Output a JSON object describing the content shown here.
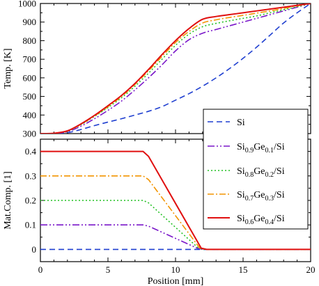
{
  "chart_data": [
    {
      "id": "top",
      "type": "line",
      "ylabel": "Temp. [K]",
      "xlim": [
        0,
        20
      ],
      "ylim": [
        300,
        1000
      ],
      "yticks": [
        300,
        400,
        500,
        600,
        700,
        800,
        900,
        1000
      ],
      "series": [
        {
          "key": "si",
          "color": "#1f3fd0",
          "dash": "8,5",
          "x": [
            0,
            1,
            2,
            3,
            4,
            5,
            6,
            7,
            8,
            9,
            10,
            11,
            12,
            13,
            14,
            15,
            16,
            17,
            18,
            19,
            20
          ],
          "y": [
            300,
            301,
            305,
            322,
            343,
            362,
            380,
            400,
            420,
            445,
            480,
            515,
            555,
            600,
            650,
            705,
            765,
            830,
            895,
            950,
            1000
          ]
        },
        {
          "key": "ge01",
          "color": "#7a17c9",
          "dash": "10,3,2,3,2,3",
          "x": [
            0,
            1,
            2,
            3,
            4,
            5,
            6,
            7,
            8,
            9,
            10,
            11,
            12,
            13,
            14,
            15,
            16,
            17,
            18,
            19,
            20
          ],
          "y": [
            300,
            301,
            310,
            340,
            380,
            425,
            475,
            535,
            600,
            670,
            745,
            805,
            840,
            860,
            880,
            900,
            920,
            940,
            960,
            980,
            1000
          ]
        },
        {
          "key": "ge02",
          "color": "#22c022",
          "dash": "2,3",
          "x": [
            0,
            1,
            2,
            3,
            4,
            5,
            6,
            7,
            8,
            9,
            10,
            11,
            12,
            13,
            14,
            15,
            16,
            17,
            18,
            19,
            20
          ],
          "y": [
            300,
            302,
            313,
            348,
            392,
            440,
            493,
            555,
            625,
            700,
            775,
            835,
            875,
            893,
            907,
            920,
            933,
            950,
            966,
            983,
            1000
          ]
        },
        {
          "key": "ge03",
          "color": "#f29400",
          "dash": "9,3,2,3",
          "x": [
            0,
            1,
            2,
            3,
            4,
            5,
            6,
            7,
            8,
            9,
            10,
            11,
            12,
            13,
            14,
            15,
            16,
            17,
            18,
            19,
            20
          ],
          "y": [
            300,
            302,
            314,
            350,
            395,
            445,
            500,
            565,
            638,
            715,
            790,
            850,
            895,
            912,
            925,
            936,
            948,
            960,
            973,
            987,
            1000
          ]
        },
        {
          "key": "ge04",
          "color": "#e01010",
          "dash": "",
          "x": [
            0,
            1,
            2,
            3,
            4,
            5,
            6,
            7,
            8,
            9,
            10,
            11,
            12,
            13,
            14,
            15,
            16,
            17,
            18,
            19,
            20
          ],
          "y": [
            300,
            302,
            315,
            352,
            398,
            450,
            505,
            570,
            645,
            725,
            800,
            865,
            915,
            930,
            940,
            950,
            960,
            970,
            980,
            990,
            1000
          ]
        }
      ]
    },
    {
      "id": "bottom",
      "type": "line",
      "xlabel": "Position [mm]",
      "ylabel": "Mat.Comp. [1]",
      "xlim": [
        0,
        20
      ],
      "ylim": [
        -0.05,
        0.45
      ],
      "xticks": [
        0,
        5,
        10,
        15,
        20
      ],
      "yticks": [
        0,
        0.1,
        0.2,
        0.3,
        0.4
      ],
      "series": [
        {
          "key": "si",
          "color": "#1f3fd0",
          "dash": "8,5",
          "x": [
            0,
            20
          ],
          "y": [
            0,
            0
          ]
        },
        {
          "key": "ge01",
          "color": "#7a17c9",
          "dash": "10,3,2,3,2,3",
          "x": [
            0,
            7.6,
            8.0,
            11.6,
            12.0,
            20
          ],
          "y": [
            0.1,
            0.1,
            0.095,
            0.005,
            0,
            0
          ]
        },
        {
          "key": "ge02",
          "color": "#22c022",
          "dash": "2,3",
          "x": [
            0,
            7.6,
            8.0,
            11.7,
            12.1,
            20
          ],
          "y": [
            0.2,
            0.2,
            0.19,
            0.005,
            0,
            0
          ]
        },
        {
          "key": "ge03",
          "color": "#f29400",
          "dash": "9,3,2,3",
          "x": [
            0,
            7.6,
            8.0,
            11.8,
            12.2,
            20
          ],
          "y": [
            0.3,
            0.3,
            0.285,
            0.005,
            0,
            0
          ]
        },
        {
          "key": "ge04",
          "color": "#e01010",
          "dash": "",
          "x": [
            0,
            7.6,
            8.0,
            11.9,
            12.3,
            20
          ],
          "y": [
            0.4,
            0.4,
            0.38,
            0.005,
            0,
            0
          ]
        }
      ]
    }
  ],
  "legend": {
    "placement": "bottom-right of top panel",
    "entries": [
      {
        "key": "si",
        "parts": [
          {
            "t": "Si",
            "sub": false
          }
        ]
      },
      {
        "key": "ge01",
        "parts": [
          {
            "t": "Si",
            "sub": false
          },
          {
            "t": "0.9",
            "sub": true
          },
          {
            "t": "Ge",
            "sub": false
          },
          {
            "t": "0.1",
            "sub": true
          },
          {
            "t": "/Si",
            "sub": false
          }
        ]
      },
      {
        "key": "ge02",
        "parts": [
          {
            "t": "Si",
            "sub": false
          },
          {
            "t": "0.8",
            "sub": true
          },
          {
            "t": "Ge",
            "sub": false
          },
          {
            "t": "0.2",
            "sub": true
          },
          {
            "t": "/Si",
            "sub": false
          }
        ]
      },
      {
        "key": "ge03",
        "parts": [
          {
            "t": "Si",
            "sub": false
          },
          {
            "t": "0.7",
            "sub": true
          },
          {
            "t": "Ge",
            "sub": false
          },
          {
            "t": "0.3",
            "sub": true
          },
          {
            "t": "/Si",
            "sub": false
          }
        ]
      },
      {
        "key": "ge04",
        "parts": [
          {
            "t": "Si",
            "sub": false
          },
          {
            "t": "0.6",
            "sub": true
          },
          {
            "t": "Ge",
            "sub": false
          },
          {
            "t": "0.4",
            "sub": true
          },
          {
            "t": "/Si",
            "sub": false
          }
        ]
      }
    ]
  }
}
